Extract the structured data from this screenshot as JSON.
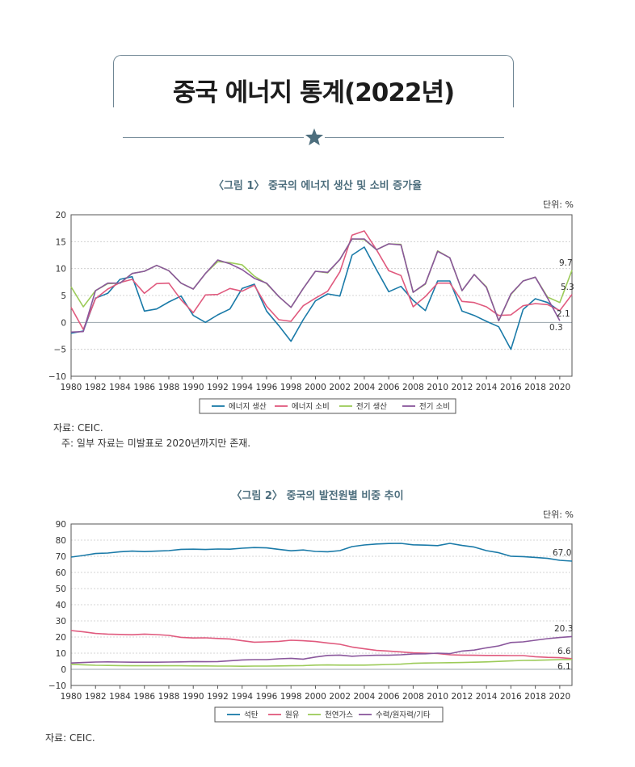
{
  "page_title": "중국 에너지 통계(2022년)",
  "colors": {
    "blue": "#1a7aa8",
    "pink": "#e05a7e",
    "green": "#9ccb59",
    "purple": "#8a579c",
    "frame": "#6f8694"
  },
  "chart_data": [
    {
      "type": "line",
      "title": "〈그림 1〉 중국의 에너지 생산 및 소비 증가율",
      "unit": "단위: %",
      "ylim": [
        -10,
        20
      ],
      "yticks": [
        -10,
        -5,
        0,
        5,
        10,
        15,
        20
      ],
      "xlim": [
        1980,
        2021
      ],
      "xticks": [
        1980,
        1982,
        1984,
        1986,
        1988,
        1990,
        1992,
        1994,
        1996,
        1998,
        2000,
        2002,
        2004,
        2006,
        2008,
        2010,
        2012,
        2014,
        2016,
        2018,
        2020
      ],
      "grid": true,
      "legend_position": "bottom",
      "series": [
        {
          "name": "에너지 생산",
          "color": "#1a7aa8",
          "x": [
            1980,
            1981,
            1982,
            1983,
            1984,
            1985,
            1986,
            1987,
            1988,
            1989,
            1990,
            1991,
            1992,
            1993,
            1994,
            1995,
            1996,
            1997,
            1998,
            1999,
            2000,
            2001,
            2002,
            2003,
            2004,
            2005,
            2006,
            2007,
            2008,
            2009,
            2010,
            2011,
            2012,
            2013,
            2014,
            2015,
            2016,
            2017,
            2018,
            2019,
            2020
          ],
          "y": [
            -2,
            -1.6,
            4.5,
            5.4,
            8,
            8.5,
            2.1,
            2.5,
            3.8,
            4.9,
            1.3,
            0,
            1.4,
            2.5,
            6.3,
            7.1,
            2.1,
            -0.6,
            -3.5,
            0.5,
            4,
            5.3,
            4.9,
            12.5,
            14,
            9.8,
            5.7,
            6.7,
            4.1,
            2.2,
            7.7,
            7.7,
            2.1,
            1.3,
            0.2,
            -0.8,
            -5,
            2.4,
            4.4,
            3.7,
            2.1
          ]
        },
        {
          "name": "에너지 소비",
          "color": "#e05a7e",
          "x": [
            1980,
            1981,
            1982,
            1983,
            1984,
            1985,
            1986,
            1987,
            1988,
            1989,
            1990,
            1991,
            1992,
            1993,
            1994,
            1995,
            1996,
            1997,
            1998,
            1999,
            2000,
            2001,
            2002,
            2003,
            2004,
            2005,
            2006,
            2007,
            2008,
            2009,
            2010,
            2011,
            2012,
            2013,
            2014,
            2015,
            2016,
            2017,
            2018,
            2019,
            2020,
            2021
          ],
          "y": [
            2.8,
            -1.3,
            4.4,
            6.2,
            7.4,
            8,
            5.4,
            7.2,
            7.3,
            4.2,
            1.8,
            5.1,
            5.2,
            6.3,
            5.8,
            6.9,
            3,
            0.5,
            0.2,
            3.1,
            4.5,
            5.8,
            9.4,
            16.2,
            17,
            13.5,
            9.6,
            8.7,
            2.9,
            4.8,
            7.3,
            7.3,
            3.9,
            3.7,
            2.9,
            1.3,
            1.4,
            3.1,
            3.5,
            3.3,
            2.2,
            5.2
          ]
        },
        {
          "name": "전기 생산",
          "color": "#9ccb59",
          "x": [
            1980,
            1981,
            1982,
            1983,
            1984,
            1985,
            1986,
            1987,
            1988,
            1989,
            1990,
            1991,
            1992,
            1993,
            1994,
            1995,
            1996,
            1997,
            1998,
            1999,
            2000,
            2001,
            2002,
            2003,
            2004,
            2005,
            2006,
            2007,
            2008,
            2009,
            2010,
            2011,
            2012,
            2013,
            2014,
            2015,
            2016,
            2017,
            2018,
            2019,
            2020,
            2021
          ],
          "y": [
            6.6,
            2.9,
            5.9,
            7.2,
            7.3,
            9.1,
            9.5,
            10.6,
            9.6,
            7.3,
            6.2,
            9.1,
            11.3,
            11.1,
            10.7,
            8.6,
            7.2,
            4.8,
            2.8,
            6.3,
            9.5,
            9.2,
            11.7,
            15.5,
            15.4,
            13.5,
            14.6,
            14.5,
            5.6,
            7.1,
            13.3,
            12,
            5.9,
            8.9,
            6.6,
            0.3,
            5.2,
            7.7,
            8.4,
            4.7,
            3.7,
            9.7
          ]
        },
        {
          "name": "전기 소비",
          "color": "#8a579c",
          "x": [
            1980,
            1981,
            1982,
            1983,
            1984,
            1985,
            1986,
            1987,
            1988,
            1989,
            1990,
            1991,
            1992,
            1993,
            1994,
            1995,
            1996,
            1997,
            1998,
            1999,
            2000,
            2001,
            2002,
            2003,
            2004,
            2005,
            2006,
            2007,
            2008,
            2009,
            2010,
            2011,
            2012,
            2013,
            2014,
            2015,
            2016,
            2017,
            2018,
            2019,
            2020
          ],
          "y": [
            -1.8,
            -1.7,
            5.9,
            7.3,
            7.3,
            9.1,
            9.5,
            10.6,
            9.6,
            7.3,
            6.2,
            9.1,
            11.6,
            10.9,
            9.8,
            8.2,
            7.3,
            4.8,
            2.8,
            6.3,
            9.5,
            9.3,
            11.7,
            15.5,
            15.5,
            13.5,
            14.6,
            14.4,
            5.6,
            7.2,
            13.2,
            12,
            5.9,
            8.9,
            6.5,
            0.3,
            5.3,
            7.7,
            8.4,
            4.5,
            0.3
          ]
        }
      ],
      "annotations": [
        "9.7",
        "5.3",
        "2.1",
        "0.3"
      ]
    },
    {
      "type": "line",
      "title": "〈그림 2〉 중국의 발전원별 비중 추이",
      "unit": "단위: %",
      "ylim": [
        -10,
        90
      ],
      "yticks": [
        -10,
        0,
        10,
        20,
        30,
        40,
        50,
        60,
        70,
        80,
        90
      ],
      "xlim": [
        1980,
        2021
      ],
      "xticks": [
        1980,
        1982,
        1984,
        1986,
        1988,
        1990,
        1992,
        1994,
        1996,
        1998,
        2000,
        2002,
        2004,
        2006,
        2008,
        2010,
        2012,
        2014,
        2016,
        2018,
        2020
      ],
      "grid": true,
      "legend_position": "bottom",
      "series": [
        {
          "name": "석탄",
          "color": "#1a7aa8",
          "x": [
            1980,
            1981,
            1982,
            1983,
            1984,
            1985,
            1986,
            1987,
            1988,
            1989,
            1990,
            1991,
            1992,
            1993,
            1994,
            1995,
            1996,
            1997,
            1998,
            1999,
            2000,
            2001,
            2002,
            2003,
            2004,
            2005,
            2006,
            2007,
            2008,
            2009,
            2010,
            2011,
            2012,
            2013,
            2014,
            2015,
            2016,
            2017,
            2018,
            2019,
            2020,
            2021
          ],
          "y": [
            69.5,
            70.5,
            71.7,
            72,
            72.8,
            73.2,
            72.9,
            73.2,
            73.5,
            74.3,
            74.4,
            74.2,
            74.5,
            74.4,
            75,
            75.4,
            75.2,
            74.3,
            73.4,
            73.9,
            73,
            72.8,
            73.5,
            76,
            77,
            77.6,
            77.9,
            78,
            77.1,
            76.9,
            76.6,
            78,
            76.7,
            75.7,
            73.5,
            72.2,
            70,
            69.8,
            69.3,
            68.7,
            67.5,
            67
          ]
        },
        {
          "name": "원유",
          "color": "#e05a7e",
          "x": [
            1980,
            1981,
            1982,
            1983,
            1984,
            1985,
            1986,
            1987,
            1988,
            1989,
            1990,
            1991,
            1992,
            1993,
            1994,
            1995,
            1996,
            1997,
            1998,
            1999,
            2000,
            2001,
            2002,
            2003,
            2004,
            2005,
            2006,
            2007,
            2008,
            2009,
            2010,
            2011,
            2012,
            2013,
            2014,
            2015,
            2016,
            2017,
            2018,
            2019,
            2020,
            2021
          ],
          "y": [
            24,
            23.2,
            22.2,
            21.8,
            21.6,
            21.4,
            21.8,
            21.5,
            21,
            19.8,
            19.4,
            19.5,
            19.1,
            18.8,
            17.7,
            16.8,
            17,
            17.3,
            18,
            17.7,
            17.2,
            16.3,
            15.5,
            13.8,
            12.7,
            11.7,
            11.3,
            10.8,
            10.2,
            10,
            9.8,
            9,
            8.8,
            8.7,
            8.6,
            8.6,
            8.5,
            8.5,
            7.8,
            7.4,
            7.2,
            6.6
          ]
        },
        {
          "name": "천연가스",
          "color": "#9ccb59",
          "x": [
            1980,
            1981,
            1982,
            1983,
            1984,
            1985,
            1986,
            1987,
            1988,
            1989,
            1990,
            1991,
            1992,
            1993,
            1994,
            1995,
            1996,
            1997,
            1998,
            1999,
            2000,
            2001,
            2002,
            2003,
            2004,
            2005,
            2006,
            2007,
            2008,
            2009,
            2010,
            2011,
            2012,
            2013,
            2014,
            2015,
            2016,
            2017,
            2018,
            2019,
            2020,
            2021
          ],
          "y": [
            3.1,
            2.8,
            2.5,
            2.4,
            2.3,
            2.2,
            2.2,
            2.2,
            2.2,
            2.2,
            2.1,
            2.1,
            2,
            2,
            1.9,
            2,
            2,
            2.1,
            2.2,
            2.3,
            2.6,
            2.7,
            2.6,
            2.6,
            2.6,
            2.8,
            3,
            3.2,
            3.7,
            3.9,
            4,
            4.1,
            4.2,
            4.4,
            4.6,
            4.9,
            5.2,
            5.5,
            5.6,
            5.8,
            6,
            6.1
          ]
        },
        {
          "name": "수력/원자력/기타",
          "color": "#8a579c",
          "x": [
            1980,
            1981,
            1982,
            1983,
            1984,
            1985,
            1986,
            1987,
            1988,
            1989,
            1990,
            1991,
            1992,
            1993,
            1994,
            1995,
            1996,
            1997,
            1998,
            1999,
            2000,
            2001,
            2002,
            2003,
            2004,
            2005,
            2006,
            2007,
            2008,
            2009,
            2010,
            2011,
            2012,
            2013,
            2014,
            2015,
            2016,
            2017,
            2018,
            2019,
            2020,
            2021
          ],
          "y": [
            3.9,
            4.2,
            4.5,
            4.6,
            4.5,
            4.4,
            4.4,
            4.4,
            4.5,
            4.6,
            4.8,
            4.7,
            4.8,
            5.3,
            5.8,
            6,
            6,
            6.5,
            6.8,
            6.3,
            7.6,
            8.6,
            8.8,
            8.1,
            8.5,
            8.7,
            8.7,
            9,
            9.5,
            9.6,
            10,
            9.7,
            11.3,
            11.9,
            13.3,
            14.5,
            16.6,
            17,
            18,
            19,
            19.7,
            20.3
          ]
        }
      ],
      "annotations": [
        "67.0",
        "20.3",
        "6.6",
        "6.1"
      ]
    }
  ],
  "notes": {
    "fig1_source": "자료: CEIC.",
    "fig1_footnote": "주: 일부 자료는 미발표로 2020년까지만 존재.",
    "fig2_source": "자료: CEIC."
  }
}
